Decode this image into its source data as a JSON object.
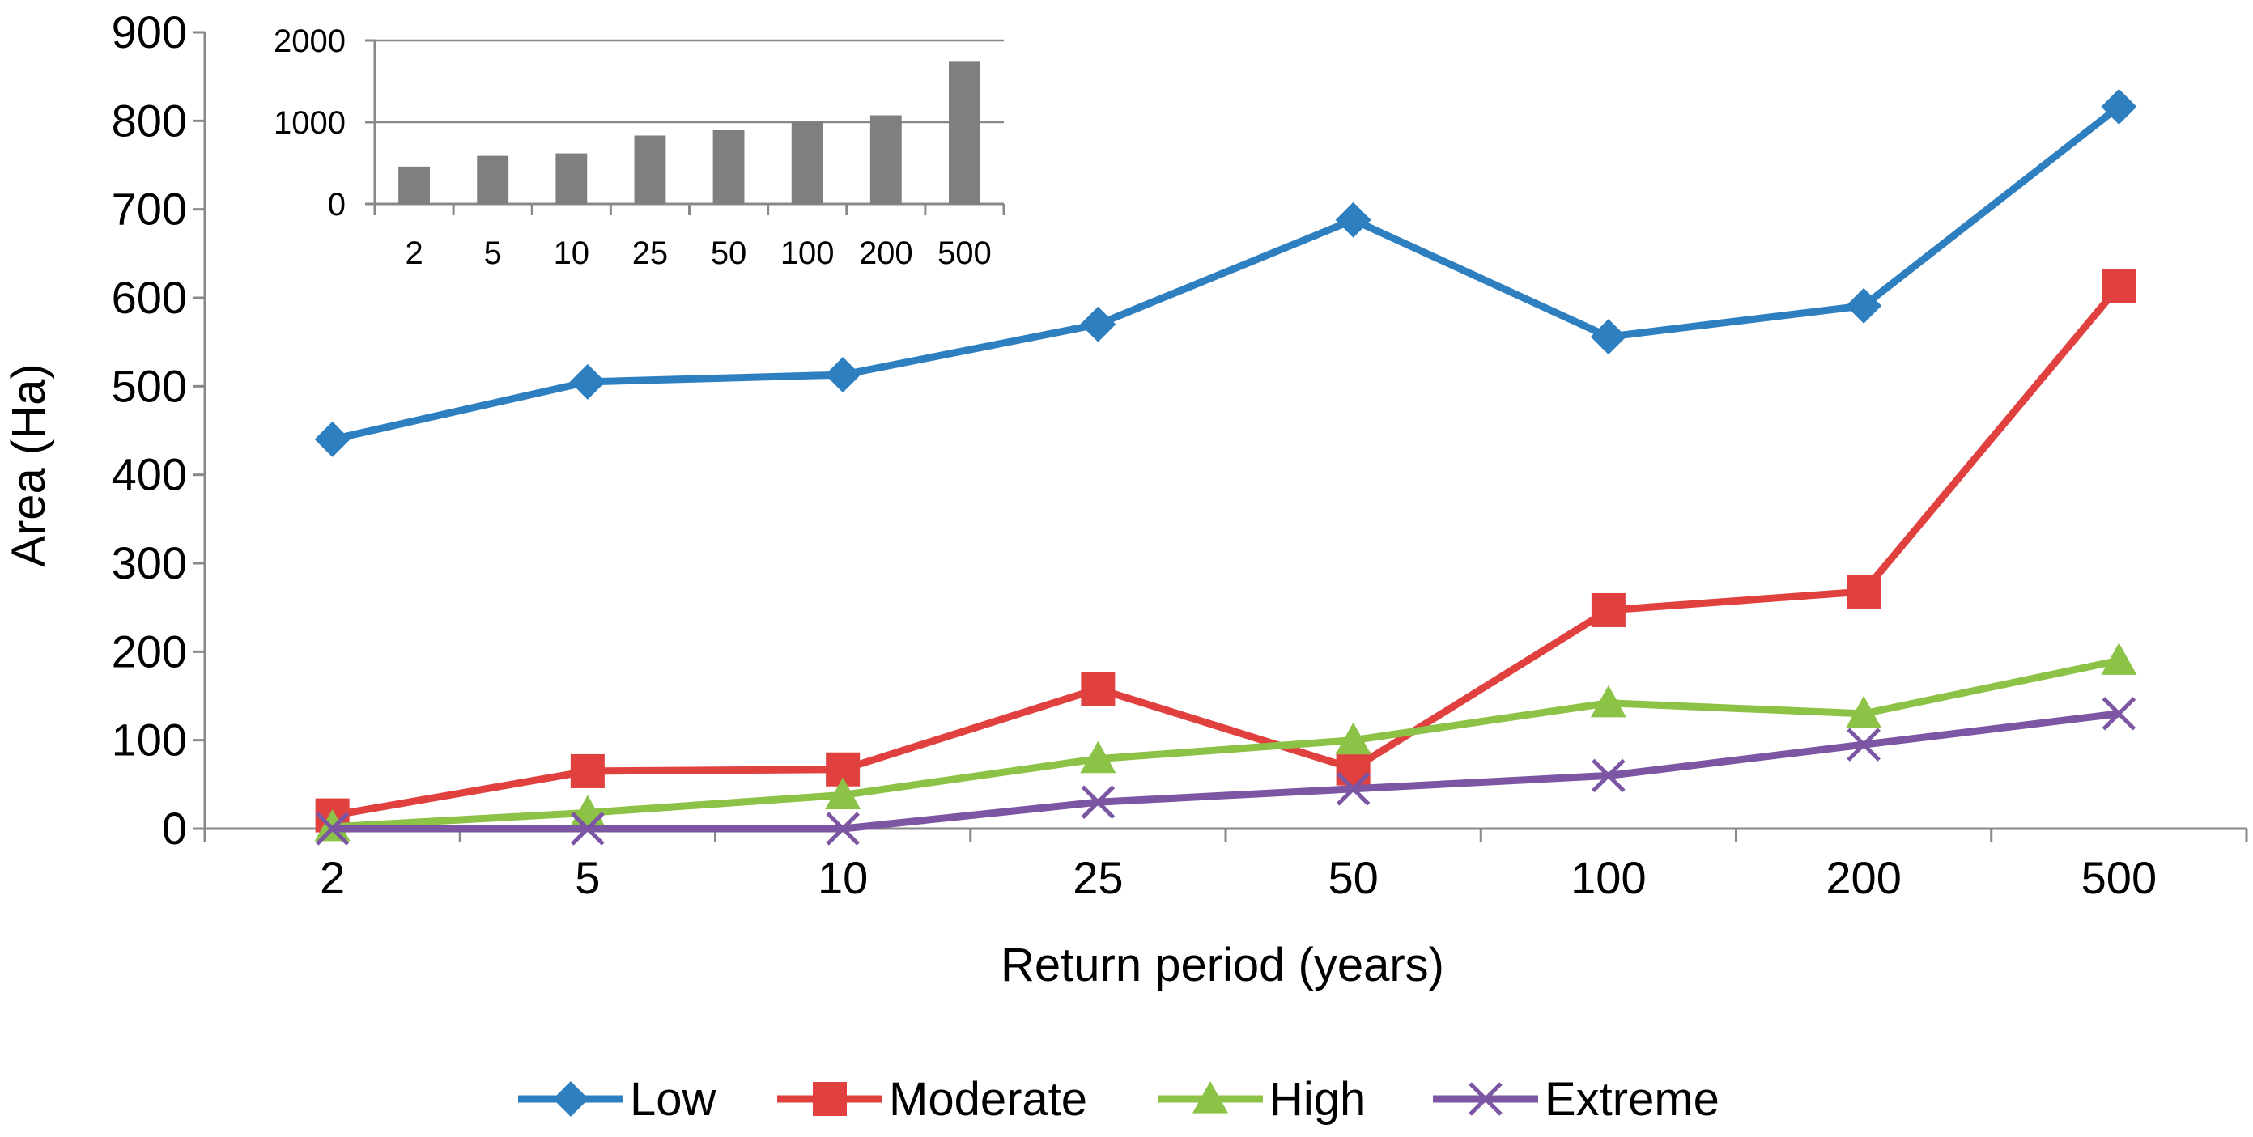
{
  "chart_data": [
    {
      "type": "line",
      "title": "",
      "xlabel": "Return period (years)",
      "ylabel": "Area  (Ha)",
      "categories": [
        "2",
        "5",
        "10",
        "25",
        "50",
        "100",
        "200",
        "500"
      ],
      "ylim": [
        0,
        900
      ],
      "yticks": [
        "0",
        "100",
        "200",
        "300",
        "400",
        "500",
        "600",
        "700",
        "800",
        "900"
      ],
      "legend_position": "bottom",
      "grid": false,
      "series": [
        {
          "name": "Low",
          "marker": "diamond",
          "color": "#2E7FC0",
          "values": [
            440,
            505,
            513,
            570,
            688,
            556,
            591,
            816
          ]
        },
        {
          "name": "Moderate",
          "marker": "square",
          "color": "#E0413F",
          "values": [
            15,
            65,
            67,
            158,
            68,
            247,
            268,
            613
          ]
        },
        {
          "name": "High",
          "marker": "triangle",
          "color": "#8CC245",
          "values": [
            2,
            18,
            38,
            79,
            100,
            142,
            130,
            190
          ]
        },
        {
          "name": "Extreme",
          "marker": "x",
          "color": "#7C55A3",
          "values": [
            0,
            0,
            0,
            30,
            45,
            60,
            95,
            130
          ]
        }
      ]
    },
    {
      "type": "bar",
      "title": "",
      "xlabel": "",
      "ylabel": "",
      "legend_position": "none",
      "categories": [
        "2",
        "5",
        "10",
        "25",
        "50",
        "100",
        "200",
        "500"
      ],
      "ylim": [
        0,
        2000
      ],
      "yticks": [
        "0",
        "1000",
        "2000"
      ],
      "color": "#7F7F7F",
      "values": [
        457,
        588,
        618,
        837,
        901,
        1005,
        1084,
        1749
      ]
    }
  ]
}
